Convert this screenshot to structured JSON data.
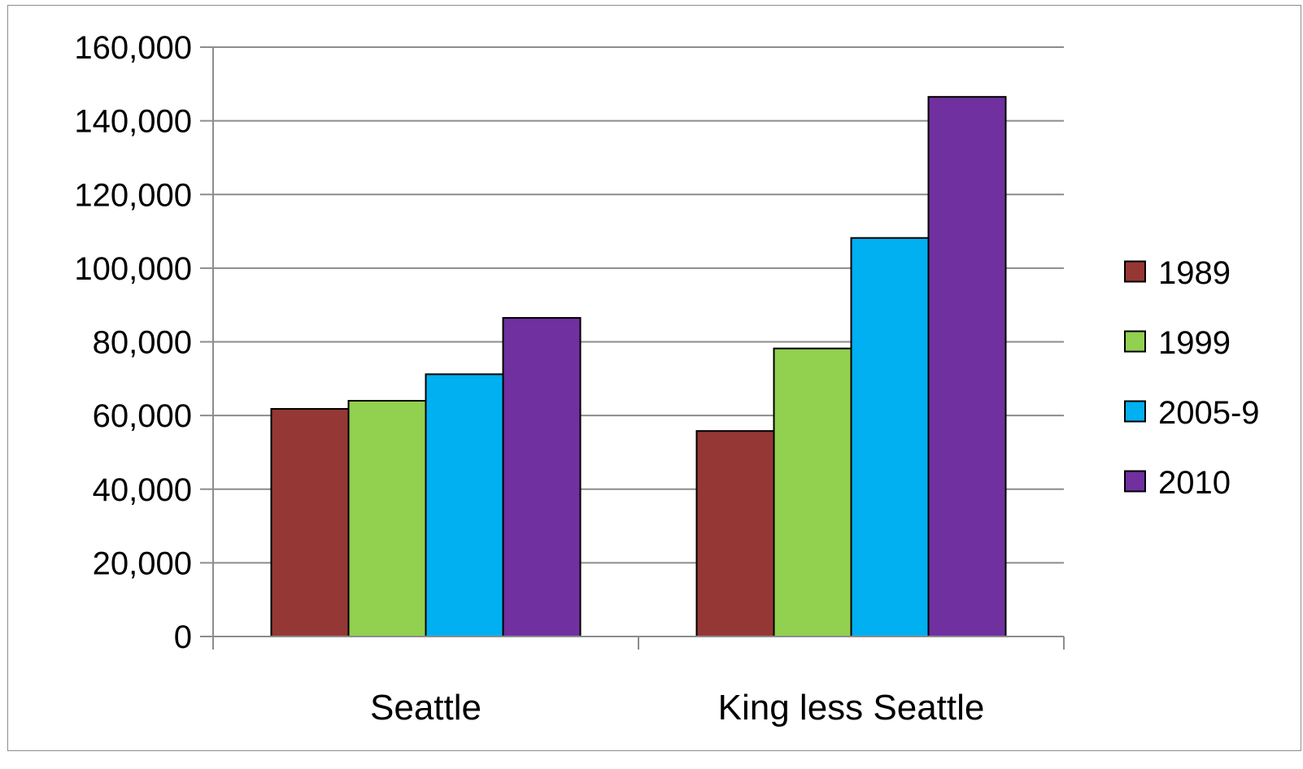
{
  "chart_data": {
    "type": "bar",
    "title": "",
    "xlabel": "",
    "ylabel": "",
    "categories": [
      "Seattle",
      "King less Seattle"
    ],
    "series": [
      {
        "name": "1989",
        "color": "#953735",
        "values": [
          61800,
          55800
        ]
      },
      {
        "name": "1999",
        "color": "#92D050",
        "values": [
          64000,
          78200
        ]
      },
      {
        "name": "2005-9",
        "color": "#00B0F0",
        "values": [
          71200,
          108200
        ]
      },
      {
        "name": "2010",
        "color": "#7030A0",
        "values": [
          86500,
          146500
        ]
      }
    ],
    "ylim": [
      0,
      160000
    ],
    "yticks": [
      0,
      20000,
      40000,
      60000,
      80000,
      100000,
      120000,
      140000,
      160000
    ],
    "ytick_labels": [
      "0",
      "20,000",
      "40,000",
      "60,000",
      "80,000",
      "100,000",
      "120,000",
      "140,000",
      "160,000"
    ],
    "grid": true,
    "legend_position": "right"
  }
}
